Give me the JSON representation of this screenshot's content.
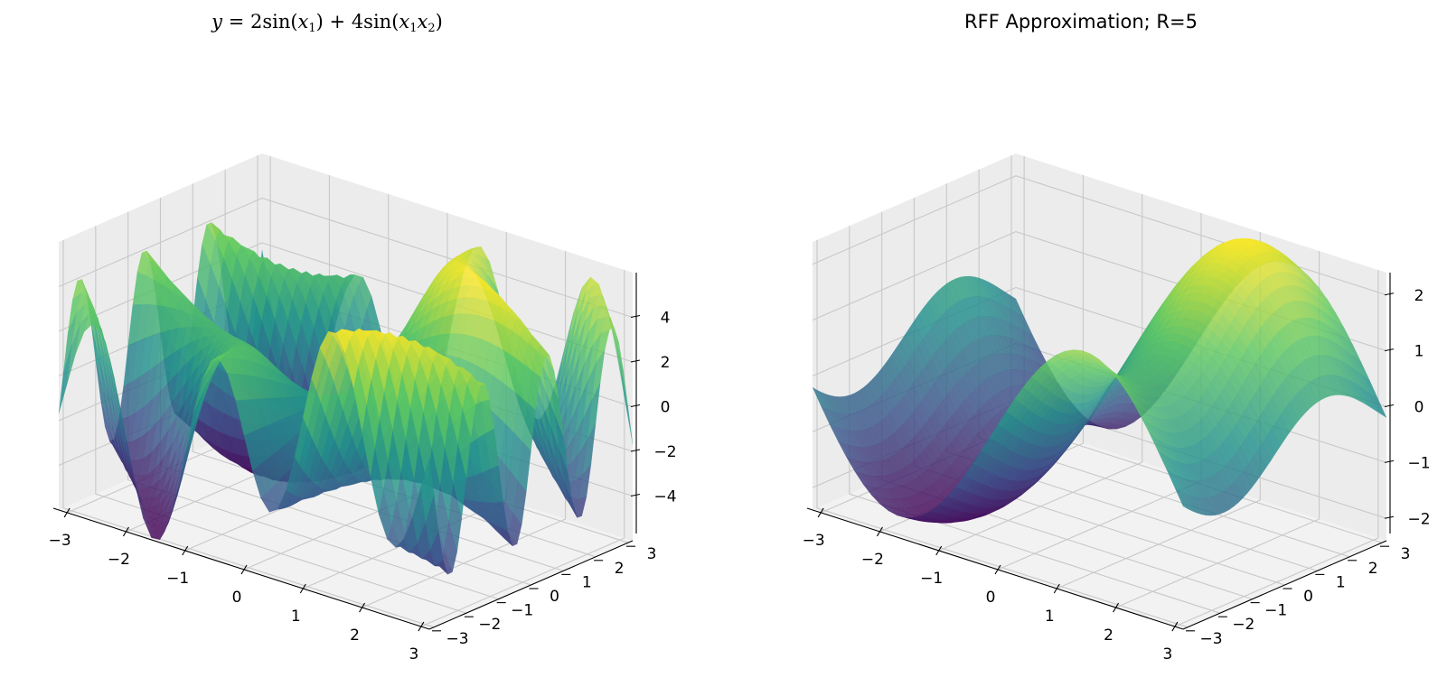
{
  "chart_data": [
    {
      "type": "surface3d",
      "title": "y = 2sin(x1) + 4sin(x1x2)",
      "function": "2*sin(x1) + 4*sin(x1*x2)",
      "xlim": [
        -3.14,
        3.14
      ],
      "ylim": [
        -3.14,
        3.14
      ],
      "zlim": [
        -6,
        6
      ],
      "x_ticks": [
        -3,
        -2,
        -1,
        0,
        1,
        2,
        3
      ],
      "y_ticks": [
        -3,
        -2,
        -1,
        0,
        1,
        2,
        3
      ],
      "z_ticks": [
        -4,
        -2,
        0,
        2,
        4
      ],
      "x_tick_labels": [
        "−3",
        "−2",
        "−1",
        "0",
        "1",
        "2",
        "3"
      ],
      "y_tick_labels": [
        "−3",
        "−2",
        "−1",
        "0",
        "1",
        "2",
        "3"
      ],
      "z_tick_labels": [
        "−4",
        "−2",
        "0",
        "2",
        "4"
      ],
      "colormap": "viridis",
      "grid": true
    },
    {
      "type": "surface3d",
      "title": "RFF Approximation; R=5",
      "function": "approximately 2*sin(x1) + 0.6*sin(x2) (smooth approximation)",
      "xlim": [
        -3.14,
        3.14
      ],
      "ylim": [
        -3.14,
        3.14
      ],
      "zlim": [
        -2.4,
        2.4
      ],
      "x_ticks": [
        -3,
        -2,
        -1,
        0,
        1,
        2,
        3
      ],
      "y_ticks": [
        -3,
        -2,
        -1,
        0,
        1,
        2,
        3
      ],
      "z_ticks": [
        -2,
        -1,
        0,
        1,
        2
      ],
      "x_tick_labels": [
        "−3",
        "−2",
        "−1",
        "0",
        "1",
        "2",
        "3"
      ],
      "y_tick_labels": [
        "−3",
        "−2",
        "−1",
        "0",
        "1",
        "2",
        "3"
      ],
      "z_tick_labels": [
        "−2",
        "−1",
        "0",
        "1",
        "2"
      ],
      "colormap": "viridis",
      "grid": true
    }
  ],
  "colors": {
    "pane_floor": "#f2f2f2",
    "pane_wall": "#ececec",
    "grid": "#c8c8c8",
    "viridis": [
      "#440154",
      "#3b528b",
      "#21918c",
      "#5ec962",
      "#fde725"
    ]
  }
}
